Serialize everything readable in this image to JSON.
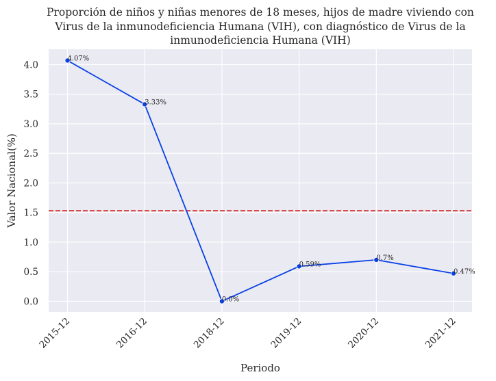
{
  "chart_data": {
    "type": "line",
    "title": [
      "Proporción de niños y niñas menores de 18 meses, hijos de madre viviendo con",
      "Virus de la inmunodeficiencia Humana (VIH), con diagnóstico de Virus de la",
      "inmunodeficiencia Humana (VIH)"
    ],
    "xlabel": "Periodo",
    "ylabel": "Valor Nacional(%)",
    "categories": [
      "2015-12",
      "2016-12",
      "2018-12",
      "2019-12",
      "2020-12",
      "2021-12"
    ],
    "values": [
      4.07,
      3.33,
      0.0,
      0.59,
      0.7,
      0.47
    ],
    "data_labels": [
      "4.07%",
      "3.33%",
      "0.0%",
      "0.59%",
      "0.7%",
      "0.47%"
    ],
    "yticks": [
      0.0,
      0.5,
      1.0,
      1.5,
      2.0,
      2.5,
      3.0,
      3.5,
      4.0
    ],
    "ytick_labels": [
      "0.0",
      "0.5",
      "1.0",
      "1.5",
      "2.0",
      "2.5",
      "3.0",
      "3.5",
      "4.0"
    ],
    "ylim": [
      -0.18,
      4.26
    ],
    "reference_line": 1.53,
    "grid": true,
    "colors": {
      "line": "#0a41e6",
      "reference": "#d62728",
      "plot_background": "#eaeaf2",
      "grid": "#ffffff"
    }
  }
}
